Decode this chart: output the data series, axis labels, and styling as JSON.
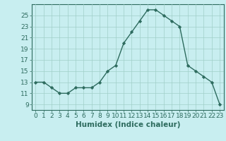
{
  "x": [
    0,
    1,
    2,
    3,
    4,
    5,
    6,
    7,
    8,
    9,
    10,
    11,
    12,
    13,
    14,
    15,
    16,
    17,
    18,
    19,
    20,
    21,
    22,
    23
  ],
  "y": [
    13,
    13,
    12,
    11,
    11,
    12,
    12,
    12,
    13,
    15,
    16,
    20,
    22,
    24,
    26,
    26,
    25,
    24,
    23,
    16,
    15,
    14,
    13,
    9
  ],
  "line_color": "#2d6b5e",
  "marker": "D",
  "marker_size": 2.2,
  "bg_color": "#c8eef0",
  "grid_color": "#a0cfc8",
  "xlabel": "Humidex (Indice chaleur)",
  "xlim": [
    -0.5,
    23.5
  ],
  "ylim": [
    8,
    27
  ],
  "yticks": [
    9,
    11,
    13,
    15,
    17,
    19,
    21,
    23,
    25
  ],
  "xticks": [
    0,
    1,
    2,
    3,
    4,
    5,
    6,
    7,
    8,
    9,
    10,
    11,
    12,
    13,
    14,
    15,
    16,
    17,
    18,
    19,
    20,
    21,
    22,
    23
  ],
  "xtick_labels": [
    "0",
    "1",
    "2",
    "3",
    "4",
    "5",
    "6",
    "7",
    "8",
    "9",
    "10",
    "11",
    "12",
    "13",
    "14",
    "15",
    "16",
    "17",
    "18",
    "19",
    "20",
    "21",
    "22",
    "23"
  ],
  "grid_lw": 0.5,
  "line_lw": 1.0,
  "axis_color": "#2d6b5e",
  "tick_color": "#2d6b5e",
  "label_fontsize": 7.5,
  "tick_fontsize": 6.5
}
